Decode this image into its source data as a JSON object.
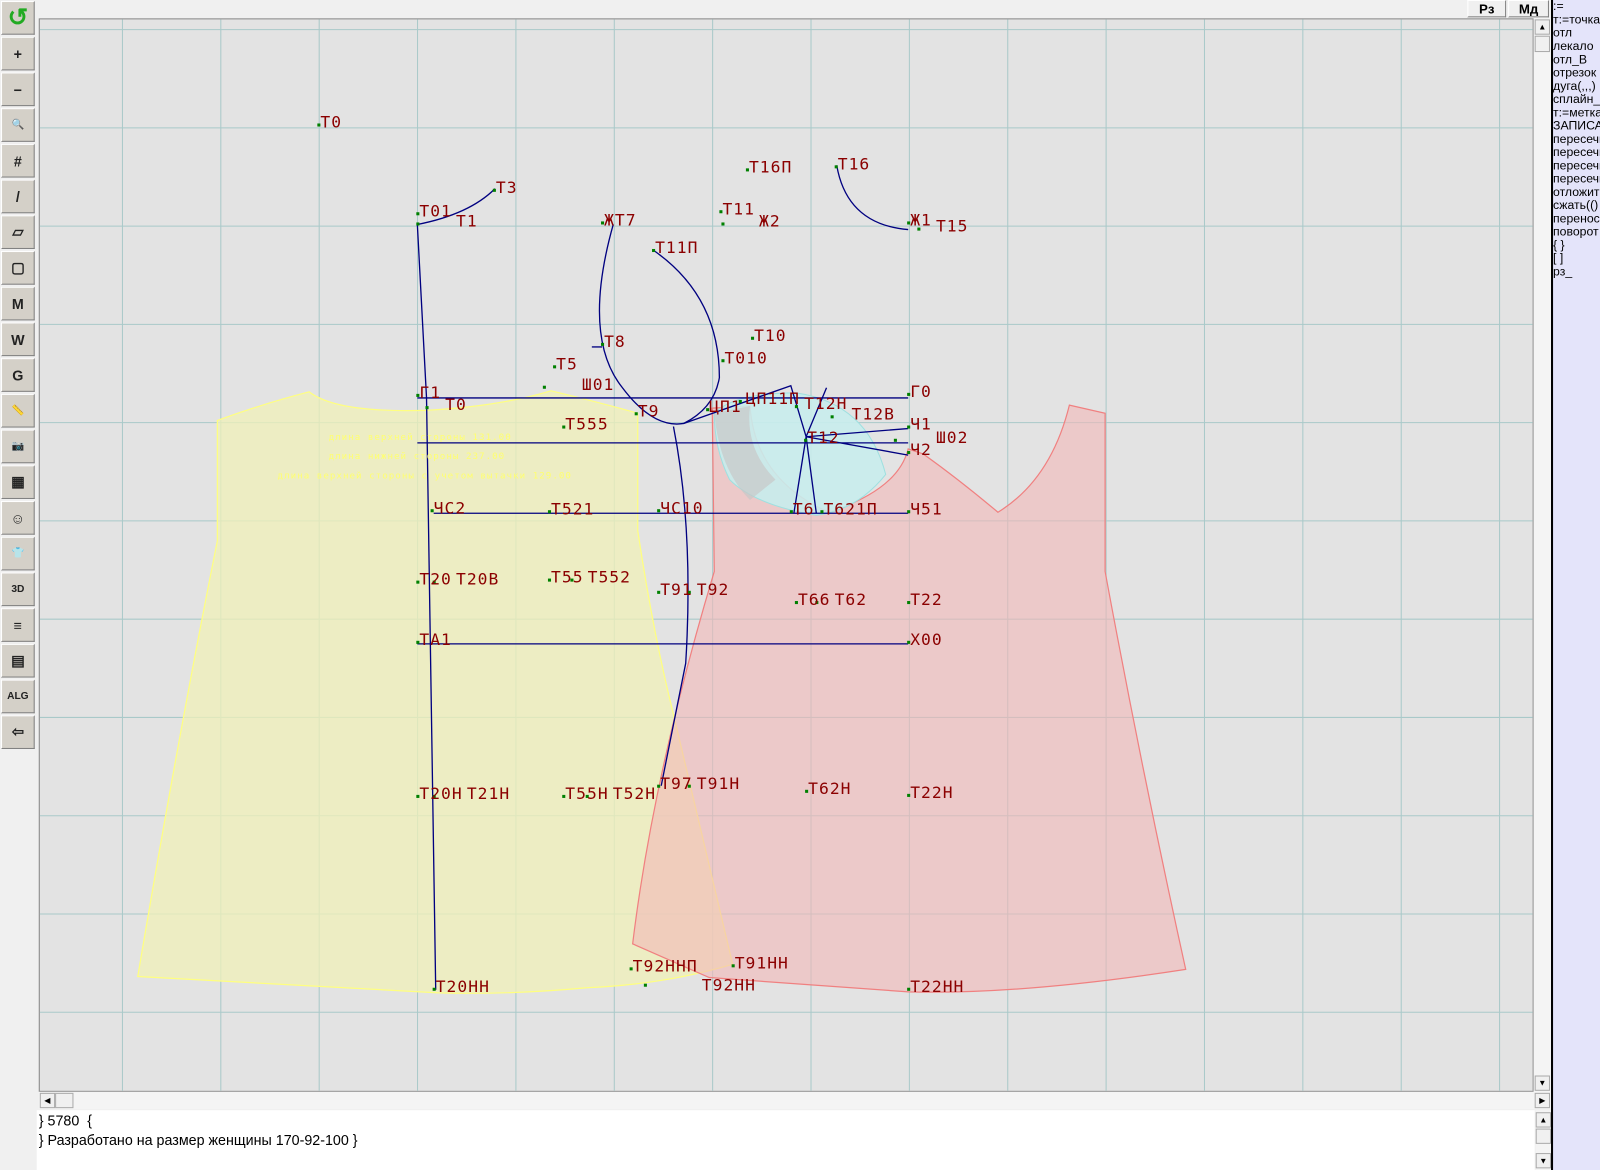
{
  "toolbar": {
    "buttons": [
      {
        "icon": "undo-arrow-icon",
        "glyph": "↺"
      },
      {
        "icon": "zoom-in-icon",
        "glyph": "+"
      },
      {
        "icon": "zoom-out-icon",
        "glyph": "−"
      },
      {
        "icon": "zoom-pattern-icon",
        "glyph": "🔍"
      },
      {
        "icon": "grid-icon",
        "glyph": "#"
      },
      {
        "icon": "line-segment-icon",
        "glyph": "/"
      },
      {
        "icon": "map-layer-icon",
        "glyph": "▱"
      },
      {
        "icon": "pattern-piece-icon",
        "glyph": "▢"
      },
      {
        "icon": "pattern-m-icon",
        "glyph": "M"
      },
      {
        "icon": "compass-icon",
        "glyph": "W"
      },
      {
        "icon": "pattern-g-icon",
        "glyph": "G"
      },
      {
        "icon": "ruler-icon",
        "glyph": "📏"
      },
      {
        "icon": "camera-icon",
        "glyph": "📷"
      },
      {
        "icon": "spreadsheet-icon",
        "glyph": "▦"
      },
      {
        "icon": "woman-avatar-icon",
        "glyph": "☺"
      },
      {
        "icon": "jacket-icon",
        "glyph": "👕"
      },
      {
        "icon": "3d-icon",
        "glyph": "3D"
      },
      {
        "icon": "document-lines-icon",
        "glyph": "≡"
      },
      {
        "icon": "books-icon",
        "glyph": "▤"
      },
      {
        "icon": "alg-icon",
        "glyph": "ALG"
      },
      {
        "icon": "exit-arrow-icon",
        "glyph": "⇦"
      }
    ]
  },
  "topbar": {
    "rz_label": "Рз",
    "md_label": "Мд"
  },
  "right_panel": {
    "items": [
      ":=",
      "т:=точка",
      "отл",
      "лекало",
      "отл_В",
      "отрезок",
      "дуга(,,,)",
      "сплайн_",
      "т:=метка",
      "ЗАПИСАТЬ",
      "пересечь",
      "пересечь",
      "пересечь",
      "пересечь",
      "отложить",
      "сжать(()",
      "перенос",
      "поворот",
      "{ }",
      "[ ]",
      "рз_"
    ]
  },
  "canvas": {
    "colors": {
      "background": "#e3e3e3",
      "grid": "#a9c9c9",
      "lines": "#000080",
      "labels": "#8b0000",
      "points": "#008000",
      "front_piece": "#ffff80",
      "back_piece": "#f08080",
      "armhole_fill": "#c8ecec"
    },
    "annotations": [
      "длина верхней стороны 131.00",
      "длина нижней стороны 237.00",
      "длина верхней стороны с учетом вытачки 129.00"
    ],
    "point_labels": [
      "Т0",
      "Т3",
      "Т01",
      "Т1",
      "ЖТ7",
      "Т11",
      "Ж2",
      "Т16П",
      "Т16",
      "Ж1",
      "Т15",
      "Т11П",
      "Т8",
      "Т10",
      "Т010",
      "Т5",
      "Ш01",
      "Г1",
      "Т0",
      "Г0",
      "Т9",
      "ЦП1",
      "ЦП11П",
      "Т12Н",
      "Т12В",
      "Т555",
      "Ч1",
      "Ш02",
      "Ч2",
      "Т12",
      "ЧС2",
      "Т521",
      "ЧС10",
      "Т6",
      "Т621П",
      "Ч51",
      "Т20",
      "Т20В",
      "Т55",
      "Т552",
      "Т91",
      "Т92",
      "Т66",
      "Т62",
      "Т22",
      "ТА1",
      "Х00",
      "Т20Н",
      "Т21Н",
      "Т55Н",
      "Т52Н",
      "Т97",
      "Т91Н",
      "Т62Н",
      "Т22Н",
      "Т92ННП",
      "Т91НН",
      "Т92НН",
      "Т20НН",
      "Т22НН"
    ]
  },
  "console": {
    "line1": "} 5780  {",
    "line2": "} Разработано на размер женщины 170-92-100 }"
  }
}
